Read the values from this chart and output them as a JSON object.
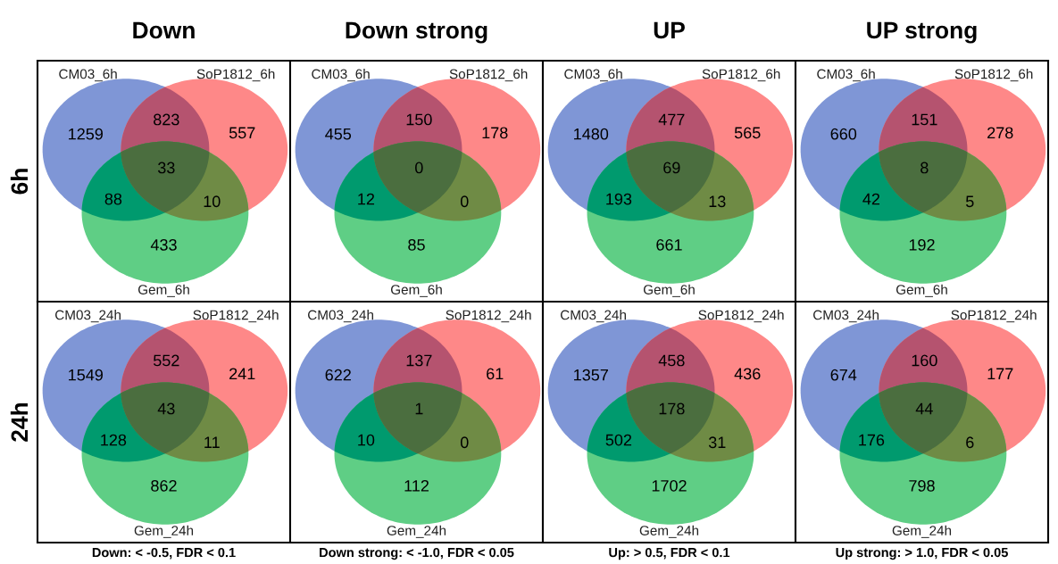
{
  "chart_data": [
    {
      "type": "other",
      "title": "Down",
      "ylabel": "6h",
      "categories": [
        null,
        null,
        null,
        null,
        null,
        null,
        null
      ],
      "values": [
        1259,
        823,
        557,
        33,
        88,
        10,
        433
      ],
      "data_labels": true,
      "colors": [
        "#7f96d6",
        "#b5536f",
        "#fe8888",
        "#4b6e3f",
        "#009a6e",
        "#6f8b45",
        "#5fce85"
      ],
      "annotations": [
        "CM03_6h",
        "SoP1812_6h",
        "Gem_6h"
      ]
    },
    {
      "type": "other",
      "title": "Down strong",
      "categories": [
        null,
        null,
        null,
        null,
        null,
        null,
        null
      ],
      "values": [
        455,
        150,
        178,
        0,
        12,
        0,
        85
      ],
      "data_labels": true,
      "colors": [
        "#7f96d6",
        "#b5536f",
        "#fe8888",
        "#4b6e3f",
        "#009a6e",
        "#6f8b45",
        "#5fce85"
      ],
      "annotations": [
        "CM03_6h",
        "SoP1812_6h",
        "Gem_6h"
      ]
    },
    {
      "type": "other",
      "title": "UP",
      "categories": [
        null,
        null,
        null,
        null,
        null,
        null,
        null
      ],
      "values": [
        1480,
        477,
        565,
        69,
        193,
        13,
        661
      ],
      "data_labels": true,
      "colors": [
        "#7f96d6",
        "#b5536f",
        "#fe8888",
        "#4b6e3f",
        "#009a6e",
        "#6f8b45",
        "#5fce85"
      ],
      "annotations": [
        "CM03_6h",
        "SoP1812_6h",
        "Gem_6h"
      ]
    },
    {
      "type": "other",
      "title": "UP strong",
      "categories": [
        null,
        null,
        null,
        null,
        null,
        null,
        null
      ],
      "values": [
        660,
        151,
        278,
        8,
        42,
        5,
        192
      ],
      "data_labels": true,
      "colors": [
        "#7f96d6",
        "#b5536f",
        "#fe8888",
        "#4b6e3f",
        "#009a6e",
        "#6f8b45",
        "#5fce85"
      ],
      "annotations": [
        "CM03_6h",
        "SoP1812_6h",
        "Gem_6h"
      ]
    },
    {
      "type": "other",
      "ylabel": "24h",
      "xlabel": "Down: < -0.5, FDR < 0.1",
      "categories": [
        null,
        null,
        null,
        null,
        null,
        null,
        null
      ],
      "values": [
        1549,
        552,
        241,
        43,
        128,
        11,
        862
      ],
      "data_labels": true,
      "colors": [
        "#7f96d6",
        "#b5536f",
        "#fe8888",
        "#4b6e3f",
        "#009a6e",
        "#6f8b45",
        "#5fce85"
      ],
      "annotations": [
        "CM03_24h",
        "SoP1812_24h",
        "Gem_24h"
      ]
    },
    {
      "type": "other",
      "xlabel": "Down strong: < -1.0, FDR < 0.05",
      "categories": [
        null,
        null,
        null,
        null,
        null,
        null,
        null
      ],
      "values": [
        622,
        137,
        61,
        1,
        10,
        0,
        112
      ],
      "data_labels": true,
      "colors": [
        "#7f96d6",
        "#b5536f",
        "#fe8888",
        "#4b6e3f",
        "#009a6e",
        "#6f8b45",
        "#5fce85"
      ],
      "annotations": [
        "CM03_24h",
        "SoP1812_24h",
        "Gem_24h"
      ]
    },
    {
      "type": "other",
      "xlabel": "Up: > 0.5, FDR < 0.1",
      "categories": [
        null,
        null,
        null,
        null,
        null,
        null,
        null
      ],
      "values": [
        1357,
        458,
        436,
        178,
        502,
        31,
        1702
      ],
      "data_labels": true,
      "colors": [
        "#7f96d6",
        "#b5536f",
        "#fe8888",
        "#4b6e3f",
        "#009a6e",
        "#6f8b45",
        "#5fce85"
      ],
      "annotations": [
        "CM03_24h",
        "SoP1812_24h",
        "Gem_24h"
      ]
    },
    {
      "type": "other",
      "xlabel": "Up strong: > 1.0, FDR < 0.05",
      "categories": [
        null,
        null,
        null,
        null,
        null,
        null,
        null
      ],
      "values": [
        674,
        160,
        177,
        44,
        176,
        6,
        798
      ],
      "data_labels": true,
      "colors": [
        "#7f96d6",
        "#b5536f",
        "#fe8888",
        "#4b6e3f",
        "#009a6e",
        "#6f8b45",
        "#5fce85"
      ],
      "annotations": [
        "CM03_24h",
        "SoP1812_24h",
        "Gem_24h"
      ]
    }
  ]
}
